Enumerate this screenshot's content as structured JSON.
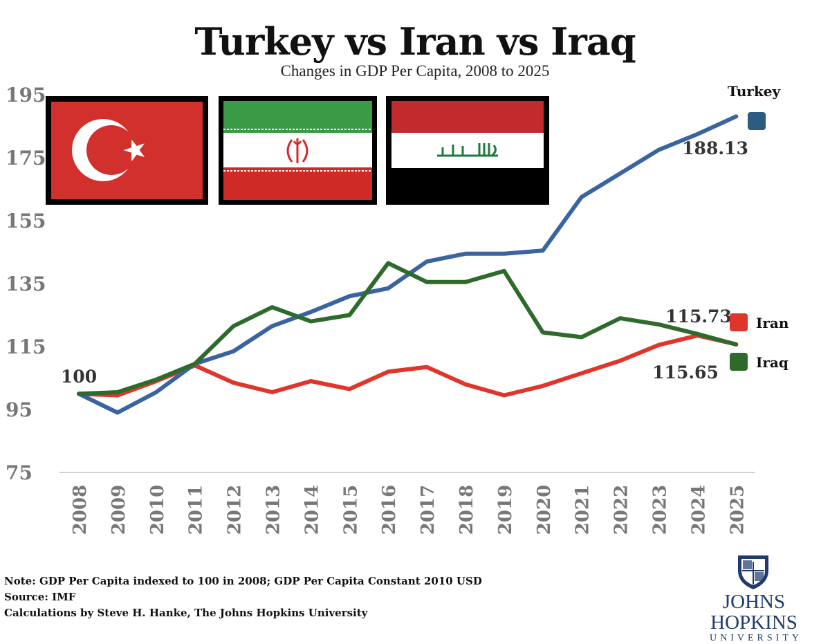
{
  "title": "Turkey vs Iran vs Iraq",
  "subtitle": "Changes in GDP Per Capita, 2008 to 2025",
  "notes": [
    "Note: GDP Per Capita indexed to 100 in 2008; GDP Per Capita Constant 2010 USD",
    "Source: IMF",
    "Calculations by Steve H. Hanke, The Johns Hopkins University"
  ],
  "logo": {
    "name": "JOHNS HOPKINS",
    "sub": "UNIVERSITY"
  },
  "flags": [
    {
      "country": "Turkey",
      "colors": [
        "#d2302c",
        "#ffffff"
      ]
    },
    {
      "country": "Iran",
      "colors": [
        "#3a9a45",
        "#ffffff",
        "#cf2b26"
      ]
    },
    {
      "country": "Iraq",
      "colors": [
        "#c22a2e",
        "#ffffff",
        "#000000",
        "#1e7a3c"
      ]
    }
  ],
  "chart_data": {
    "type": "line",
    "title": "Turkey vs Iran vs Iraq",
    "subtitle": "Changes in GDP Per Capita, 2008 to 2025",
    "x": [
      "2008",
      "2009",
      "2010",
      "2011",
      "2012",
      "2013",
      "2014",
      "2015",
      "2016",
      "2017",
      "2018",
      "2019",
      "2020",
      "2021",
      "2022",
      "2023",
      "2024",
      "2025"
    ],
    "yticks": [
      "195",
      "175",
      "155",
      "135",
      "115",
      "95",
      "75"
    ],
    "ylim": [
      75,
      195
    ],
    "grid": false,
    "series": [
      {
        "name": "Turkey",
        "color": "#3a64a0",
        "values": [
          100,
          94,
          100.5,
          109.5,
          113.5,
          121.5,
          126,
          131,
          133.5,
          142,
          144.5,
          144.5,
          145.5,
          162.5,
          170,
          177.5,
          182.5,
          188.13
        ]
      },
      {
        "name": "Iran",
        "color": "#e0352b",
        "values": [
          100,
          99.5,
          104,
          109,
          103.5,
          100.5,
          104,
          101.5,
          107,
          108.5,
          103,
          99.5,
          102.5,
          106.5,
          110.5,
          115.5,
          118.5,
          115.73
        ]
      },
      {
        "name": "Iraq",
        "color": "#2e6a2c",
        "values": [
          100,
          100.5,
          104.5,
          109.5,
          121.5,
          127.5,
          123,
          125,
          141.5,
          135.5,
          135.5,
          139,
          119.5,
          118,
          124,
          122,
          119,
          115.65
        ]
      }
    ],
    "annotations": [
      "100",
      "188.13",
      "115.73",
      "115.65"
    ],
    "legend": [
      {
        "label": "Turkey",
        "color": "#2c5b84"
      },
      {
        "label": "Iran",
        "color": "#e0352b"
      },
      {
        "label": "Iraq",
        "color": "#2e6a2c"
      }
    ]
  }
}
